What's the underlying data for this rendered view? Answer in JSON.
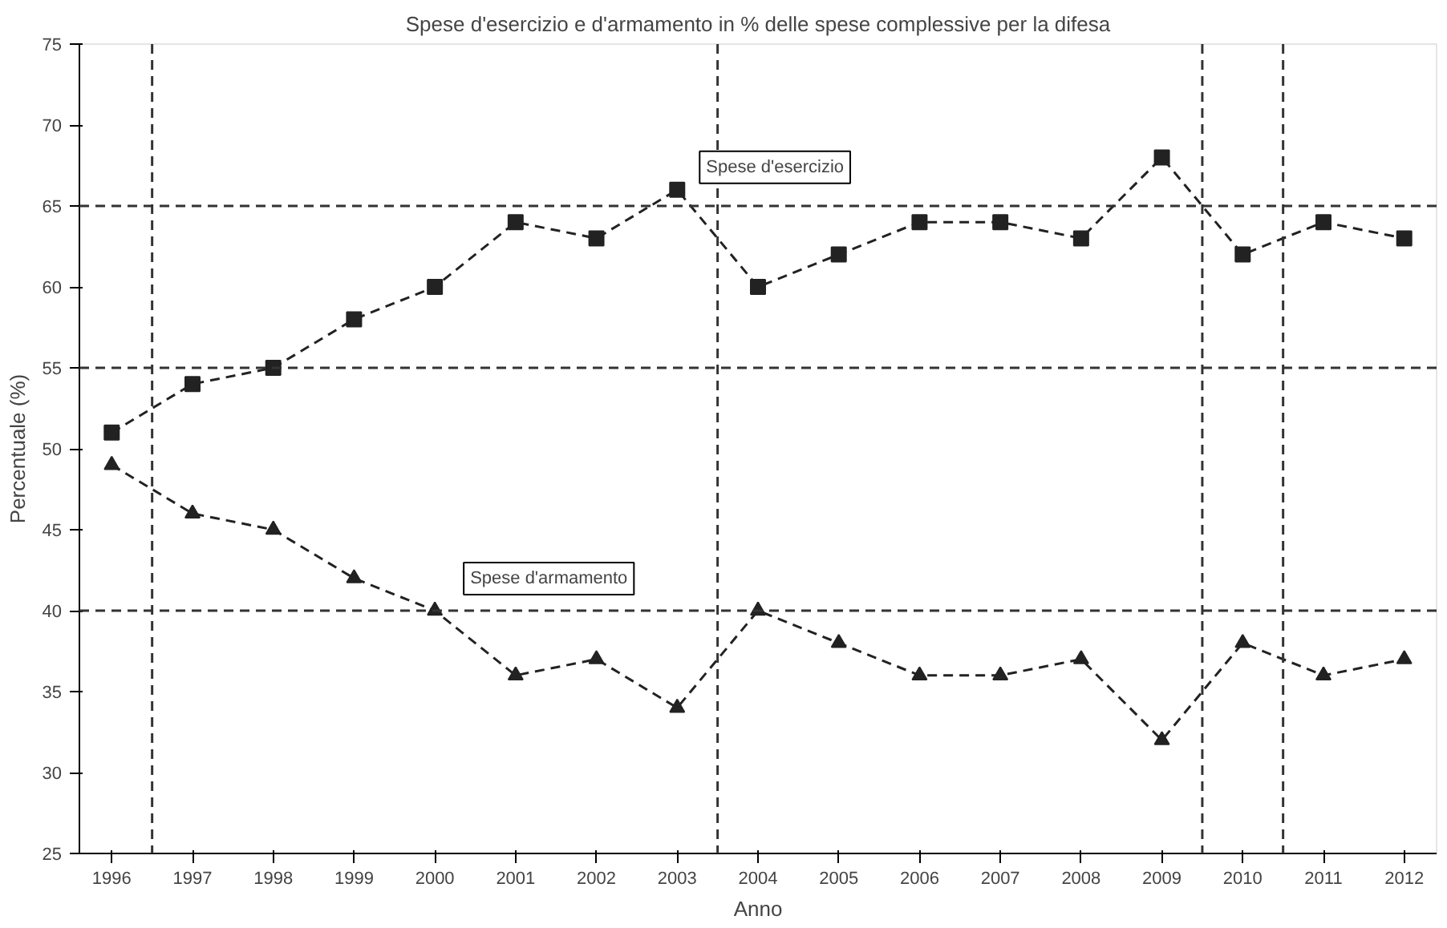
{
  "chart_data": {
    "type": "line",
    "title": "Spese d'esercizio e d'armamento in % delle spese complessive per la difesa",
    "xlabel": "Anno",
    "ylabel": "Percentuale (%)",
    "x": [
      1996,
      1997,
      1998,
      1999,
      2000,
      2001,
      2002,
      2003,
      2004,
      2005,
      2006,
      2007,
      2008,
      2009,
      2010,
      2011,
      2012
    ],
    "series": [
      {
        "name": "Spese d'esercizio",
        "color": "#222222",
        "marker": "square",
        "values": [
          51,
          54,
          55,
          58,
          60,
          64,
          63,
          66,
          60,
          62,
          64,
          64,
          63,
          68,
          62,
          64,
          63
        ]
      },
      {
        "name": "Spese d'armamento",
        "color": "#222222",
        "marker": "triangle",
        "values": [
          49,
          46,
          45,
          42,
          40,
          36,
          37,
          34,
          40,
          38,
          36,
          36,
          37,
          32,
          38,
          36,
          37
        ]
      }
    ],
    "xlim": [
      1995.6,
      2012.4
    ],
    "xticks": [
      1996,
      1997,
      1998,
      1999,
      2000,
      2001,
      2002,
      2003,
      2004,
      2005,
      2006,
      2007,
      2008,
      2009,
      2010,
      2011,
      2012
    ],
    "ylim": [
      25,
      75
    ],
    "yticks": [
      25,
      30,
      35,
      40,
      45,
      50,
      55,
      60,
      65,
      70,
      75
    ],
    "line_style": "dashed",
    "grid": false,
    "legend": false,
    "ref_lines": [
      {
        "axis": "y",
        "value": 65,
        "line_style": "dashed",
        "color": "#333333"
      },
      {
        "axis": "y",
        "value": 55,
        "line_style": "dashed",
        "color": "#333333"
      },
      {
        "axis": "y",
        "value": 40,
        "line_style": "dashed",
        "color": "#333333"
      },
      {
        "axis": "x",
        "value": 1996.5,
        "line_style": "dashed",
        "color": "#333333"
      },
      {
        "axis": "x",
        "value": 2003.5,
        "line_style": "dashed",
        "color": "#333333"
      },
      {
        "axis": "x",
        "value": 2009.5,
        "line_style": "dashed",
        "color": "#333333"
      },
      {
        "axis": "x",
        "value": 2010.5,
        "line_style": "dashed",
        "color": "#333333"
      }
    ]
  }
}
